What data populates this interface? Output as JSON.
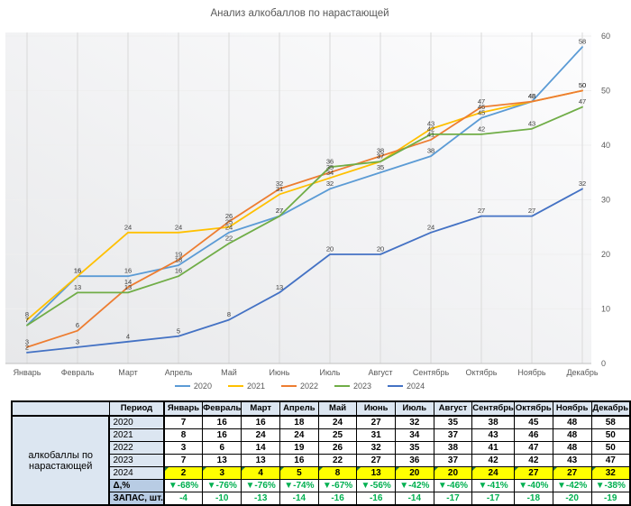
{
  "title": "Анализ алкобаллов по нарастающей",
  "months": [
    "Январь",
    "Февраль",
    "Март",
    "Апрель",
    "Май",
    "Июнь",
    "Июль",
    "Август",
    "Сентябрь",
    "Октябрь",
    "Ноябрь",
    "Декабрь"
  ],
  "chart_data": {
    "type": "line",
    "title": "Анализ алкобаллов по нарастающей",
    "categories": [
      "Январь",
      "Февраль",
      "Март",
      "Апрель",
      "Май",
      "Июнь",
      "Июль",
      "Август",
      "Сентябрь",
      "Октябрь",
      "Ноябрь",
      "Декабрь"
    ],
    "series": [
      {
        "name": "2020",
        "color": "#5B9BD5",
        "highlight": false,
        "values": [
          7,
          16,
          16,
          18,
          24,
          27,
          32,
          35,
          38,
          45,
          48,
          58
        ]
      },
      {
        "name": "2021",
        "color": "#FFC000",
        "highlight": false,
        "values": [
          8,
          16,
          24,
          24,
          25,
          31,
          34,
          37,
          43,
          46,
          48,
          50
        ]
      },
      {
        "name": "2022",
        "color": "#ED7D31",
        "highlight": false,
        "values": [
          3,
          6,
          14,
          19,
          26,
          32,
          35,
          38,
          41,
          47,
          48,
          50
        ]
      },
      {
        "name": "2023",
        "color": "#70AD47",
        "highlight": false,
        "values": [
          7,
          13,
          13,
          16,
          22,
          27,
          36,
          37,
          42,
          42,
          43,
          47
        ]
      },
      {
        "name": "2024",
        "color": "#4472C4",
        "highlight": true,
        "values": [
          2,
          3,
          4,
          5,
          8,
          13,
          20,
          20,
          24,
          27,
          27,
          32
        ]
      }
    ],
    "ylim": [
      0,
      60
    ],
    "yticks": [
      0,
      10,
      20,
      30,
      40,
      50,
      60
    ],
    "y_axis_side": "right",
    "data_labels": true,
    "legend_position": "bottom",
    "grid": "vertical-major-and-faint-horizontal"
  },
  "table": {
    "row_group_label": "алкобаллы по нарастающей",
    "corner_label": "",
    "period_header": "Период",
    "delta_row": {
      "label": "Δ,%",
      "marker": "▼",
      "values": [
        "-68%",
        "-76%",
        "-76%",
        "-74%",
        "-67%",
        "-56%",
        "-42%",
        "-46%",
        "-41%",
        "-40%",
        "-42%",
        "-38%"
      ]
    },
    "stock_row": {
      "label": "ЗАПАС, шт.",
      "values": [
        "-4",
        "-10",
        "-13",
        "-14",
        "-16",
        "-16",
        "-14",
        "-17",
        "-17",
        "-18",
        "-20",
        "-19"
      ]
    }
  },
  "colors": {
    "series_2020": "#5B9BD5",
    "series_2021": "#FFC000",
    "series_2022": "#ED7D31",
    "series_2023": "#70AD47",
    "series_2024": "#4472C4",
    "table_header_fill": "#DCE6F1",
    "table_subheader_fill": "#B8CCE4",
    "highlight_fill": "#FFFF00",
    "negative_delta_text": "#00B050",
    "axis_text": "#595959",
    "data_label_text": "#404040",
    "gridline": "#D9D9D9",
    "comment_flag": "#1E7145"
  }
}
